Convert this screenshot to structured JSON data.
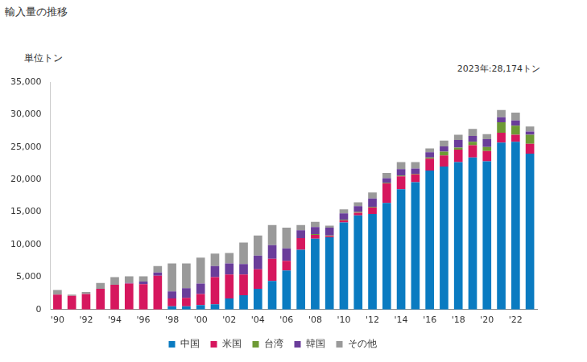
{
  "chart_data": {
    "type": "bar",
    "title": "輸入量の推移",
    "ylabel": "単位トン",
    "annotations": [
      "2023年:28,174トン"
    ],
    "stacked": true,
    "grid": false,
    "legend": "bottom",
    "categories": [
      "'90",
      null,
      "'92",
      null,
      "'94",
      null,
      "'96",
      null,
      "'98",
      null,
      "'00",
      null,
      "'02",
      null,
      "'04",
      null,
      "'06",
      null,
      "'08",
      null,
      "'10",
      null,
      "'12",
      null,
      "'14",
      null,
      "'16",
      null,
      "'18",
      null,
      "'20",
      null,
      "'22",
      null
    ],
    "ylim": [
      0,
      35000
    ],
    "yticks": [
      0,
      {
        "value": 5000,
        "label": "5,000"
      },
      {
        "value": 10000,
        "label": "10,000"
      },
      {
        "value": 15000,
        "label": "15,000"
      },
      {
        "value": 20000,
        "label": "20,000"
      },
      {
        "value": 25000,
        "label": "25,000"
      },
      {
        "value": 30000,
        "label": "30,000"
      },
      {
        "value": 35000,
        "label": "35,000"
      }
    ],
    "series": [
      {
        "name": "中国",
        "color": "#0a7bc1",
        "values": [
          0,
          0,
          0,
          0,
          0,
          0,
          0,
          0,
          500,
          500,
          700,
          800,
          1700,
          2200,
          3200,
          4400,
          6000,
          9200,
          10900,
          11100,
          13400,
          14500,
          14700,
          16400,
          18500,
          19600,
          21400,
          22000,
          22700,
          23400,
          22800,
          25700,
          25800,
          24000
        ]
      },
      {
        "name": "米国",
        "color": "#d6175e",
        "values": [
          2300,
          2100,
          2400,
          3200,
          3800,
          4000,
          3900,
          5200,
          1200,
          1300,
          1700,
          4200,
          3700,
          3200,
          3000,
          3400,
          1500,
          1800,
          600,
          200,
          300,
          400,
          1000,
          3000,
          2000,
          1200,
          1800,
          1700,
          1900,
          1900,
          1600,
          1500,
          1100,
          1500
        ]
      },
      {
        "name": "台湾",
        "color": "#6e9a35",
        "values": [
          0,
          0,
          0,
          0,
          0,
          0,
          0,
          0,
          0,
          0,
          0,
          0,
          0,
          0,
          0,
          0,
          0,
          0,
          100,
          100,
          100,
          100,
          100,
          100,
          100,
          100,
          200,
          600,
          300,
          500,
          600,
          1600,
          1400,
          1400
        ]
      },
      {
        "name": "韓国",
        "color": "#6a3d9a",
        "values": [
          0,
          0,
          0,
          0,
          0,
          100,
          400,
          500,
          1100,
          1500,
          1600,
          1700,
          1700,
          1600,
          2100,
          2100,
          1900,
          1200,
          1100,
          1200,
          1000,
          900,
          1300,
          700,
          1000,
          800,
          800,
          800,
          1200,
          900,
          1200,
          800,
          800,
          500
        ]
      },
      {
        "name": "その他",
        "color": "#9a9a9a",
        "values": [
          700,
          200,
          300,
          900,
          1200,
          1000,
          800,
          1000,
          4300,
          3800,
          4000,
          1900,
          1600,
          3300,
          3100,
          3100,
          3200,
          800,
          800,
          300,
          600,
          600,
          900,
          800,
          1100,
          1000,
          600,
          900,
          800,
          1100,
          800,
          1100,
          1200,
          774
        ]
      }
    ]
  }
}
